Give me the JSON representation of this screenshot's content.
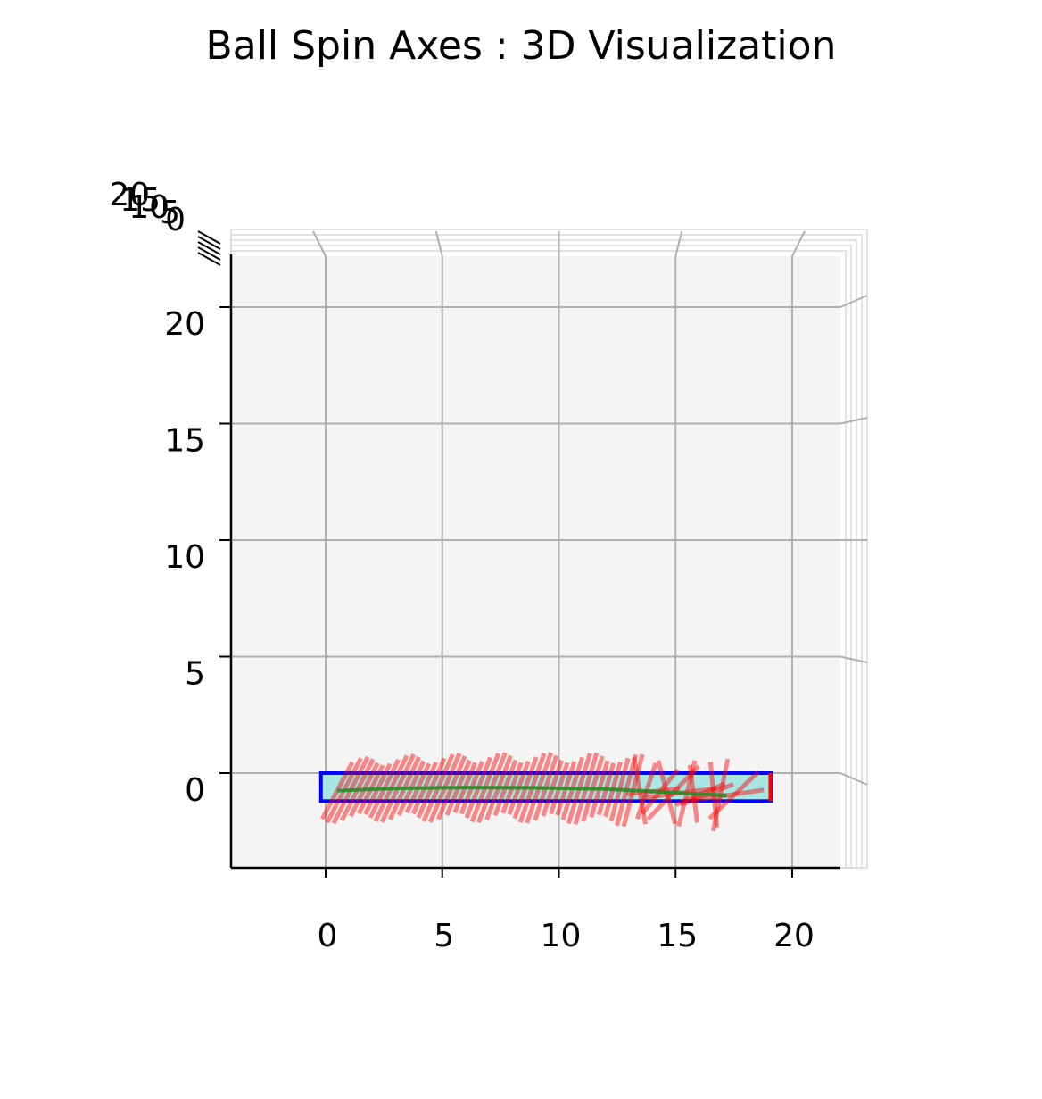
{
  "chart_data": {
    "type": "3d-line",
    "title": "Ball Spin Axes : 3D Visualization",
    "view": "top-down (x horizontal, y vertical, z into screen)",
    "x_ticks": [
      0,
      5,
      10,
      15,
      20
    ],
    "y_ticks": [
      0,
      5,
      10,
      15,
      20
    ],
    "z_ticks": [
      0,
      5,
      10,
      15,
      20
    ],
    "xlim": [
      -4,
      22
    ],
    "ylim": [
      -4,
      22
    ],
    "grid": true,
    "pane_color": "#f4f4f4",
    "lane": {
      "x_range": [
        -0.2,
        19.1
      ],
      "y_range": [
        -1.2,
        0
      ],
      "fill": "#a8e6e6",
      "edge_color": "#0000ff",
      "end_marker_color": "#ff0000"
    },
    "trajectory": {
      "color": "#228b22",
      "x": [
        0.5,
        3,
        6,
        9,
        12,
        14,
        16,
        17.2
      ],
      "y": [
        -0.75,
        -0.65,
        -0.62,
        -0.63,
        -0.68,
        -0.78,
        -0.9,
        -0.95
      ]
    },
    "spin_axes": {
      "color": "#ff0000",
      "count": 60,
      "x_start": 0.5,
      "x_end": 17.5
    }
  }
}
